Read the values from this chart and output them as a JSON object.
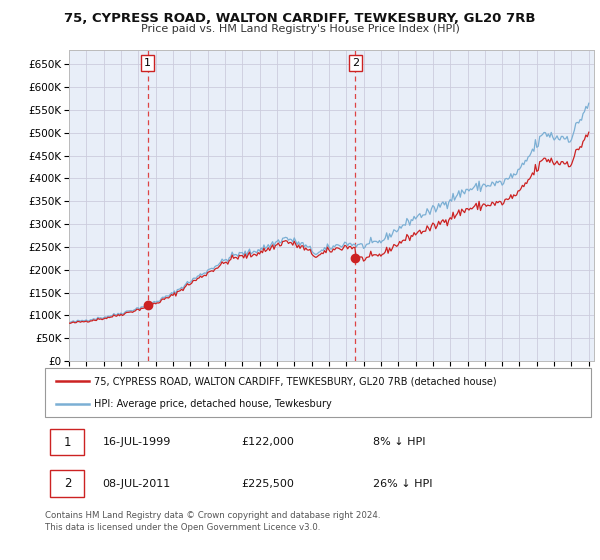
{
  "title": "75, CYPRESS ROAD, WALTON CARDIFF, TEWKESBURY, GL20 7RB",
  "subtitle": "Price paid vs. HM Land Registry's House Price Index (HPI)",
  "ytick_values": [
    0,
    50000,
    100000,
    150000,
    200000,
    250000,
    300000,
    350000,
    400000,
    450000,
    500000,
    550000,
    600000,
    650000
  ],
  "ylim": [
    0,
    680000
  ],
  "xlim_start": 1995.0,
  "xlim_end": 2025.3,
  "hpi_color": "#7bafd4",
  "sale_color": "#cc2222",
  "grid_color": "#ccccdd",
  "chart_bg": "#e8eef8",
  "legend_sale_label": "75, CYPRESS ROAD, WALTON CARDIFF, TEWKESBURY, GL20 7RB (detached house)",
  "legend_hpi_label": "HPI: Average price, detached house, Tewkesbury",
  "annotation1_num": "1",
  "annotation1_date": "16-JUL-1999",
  "annotation1_price": "£122,000",
  "annotation1_hpi": "8% ↓ HPI",
  "annotation2_num": "2",
  "annotation2_date": "08-JUL-2011",
  "annotation2_price": "£225,500",
  "annotation2_hpi": "26% ↓ HPI",
  "footnote": "Contains HM Land Registry data © Crown copyright and database right 2024.\nThis data is licensed under the Open Government Licence v3.0.",
  "sale1_year": 1999.54,
  "sale1_price": 122000,
  "sale2_year": 2011.52,
  "sale2_price": 225500,
  "hpi_base_at_sale1": 133000,
  "hpi_base_at_sale2": 304000
}
